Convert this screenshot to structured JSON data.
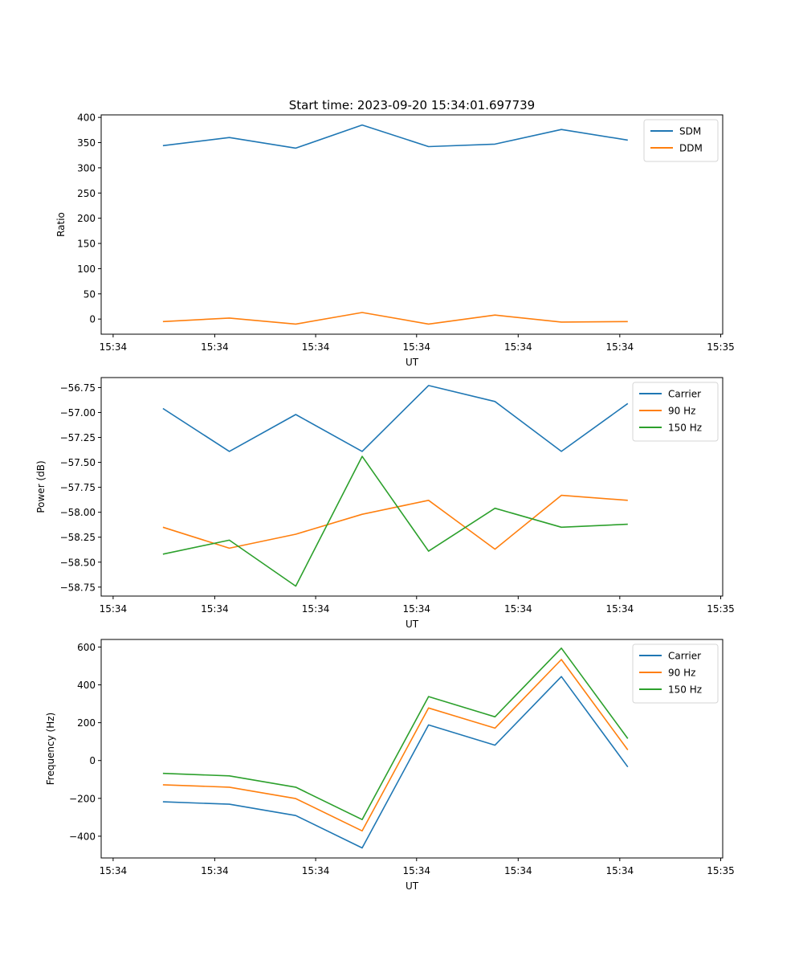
{
  "figure": {
    "title": "Start time: 2023-09-20 15:34:01.697739"
  },
  "colors": {
    "c0": "#1f77b4",
    "c1": "#ff7f0e",
    "c2": "#2ca02c"
  },
  "chart_data": [
    {
      "type": "line",
      "title": "Start time: 2023-09-20 15:34:01.697739",
      "xlabel": "UT",
      "ylabel": "Ratio",
      "x": [
        0,
        1,
        2,
        3,
        4,
        5,
        6,
        7
      ],
      "xlim": [
        -0.93,
        8.43
      ],
      "xticks": [
        -0.75,
        0.78,
        2.3,
        3.82,
        5.35,
        6.88,
        8.4
      ],
      "xtick_labels": [
        "15:34",
        "15:34",
        "15:34",
        "15:34",
        "15:34",
        "15:34",
        "15:35"
      ],
      "ylim": [
        -30,
        405
      ],
      "yticks": [
        0,
        50,
        100,
        150,
        200,
        250,
        300,
        350,
        400
      ],
      "ytick_labels": [
        "0",
        "50",
        "100",
        "150",
        "200",
        "250",
        "300",
        "350",
        "400"
      ],
      "grid": false,
      "legend": "upper-right",
      "series": [
        {
          "name": "SDM",
          "color": "#1f77b4",
          "values": [
            344,
            360,
            339,
            385,
            342,
            347,
            376,
            355
          ]
        },
        {
          "name": "DDM",
          "color": "#ff7f0e",
          "values": [
            -5,
            2,
            -10,
            13,
            -10,
            8,
            -6,
            -5
          ]
        }
      ]
    },
    {
      "type": "line",
      "title": "",
      "xlabel": "UT",
      "ylabel": "Power (dB)",
      "x": [
        0,
        1,
        2,
        3,
        4,
        5,
        6,
        7
      ],
      "xlim": [
        -0.93,
        8.43
      ],
      "xticks": [
        -0.75,
        0.78,
        2.3,
        3.82,
        5.35,
        6.88,
        8.4
      ],
      "xtick_labels": [
        "15:34",
        "15:34",
        "15:34",
        "15:34",
        "15:34",
        "15:34",
        "15:35"
      ],
      "ylim": [
        -58.84,
        -56.65
      ],
      "yticks": [
        -58.75,
        -58.5,
        -58.25,
        -58.0,
        -57.75,
        -57.5,
        -57.25,
        -57.0,
        -56.75
      ],
      "ytick_labels": [
        "−58.75",
        "−58.50",
        "−58.25",
        "−58.00",
        "−57.75",
        "−57.50",
        "−57.25",
        "−57.00",
        "−56.75"
      ],
      "grid": false,
      "legend": "upper-right",
      "series": [
        {
          "name": "Carrier",
          "color": "#1f77b4",
          "values": [
            -56.96,
            -57.39,
            -57.02,
            -57.39,
            -56.73,
            -56.89,
            -57.39,
            -56.91
          ]
        },
        {
          "name": "90 Hz",
          "color": "#ff7f0e",
          "values": [
            -58.15,
            -58.36,
            -58.22,
            -58.02,
            -57.88,
            -58.37,
            -57.83,
            -57.88
          ]
        },
        {
          "name": "150 Hz",
          "color": "#2ca02c",
          "values": [
            -58.42,
            -58.28,
            -58.74,
            -57.44,
            -58.39,
            -57.96,
            -58.15,
            -58.12
          ]
        }
      ]
    },
    {
      "type": "line",
      "title": "",
      "xlabel": "UT",
      "ylabel": "Frequency (Hz)",
      "x": [
        0,
        1,
        2,
        3,
        4,
        5,
        6,
        7
      ],
      "xlim": [
        -0.93,
        8.43
      ],
      "xticks": [
        -0.75,
        0.78,
        2.3,
        3.82,
        5.35,
        6.88,
        8.4
      ],
      "xtick_labels": [
        "15:34",
        "15:34",
        "15:34",
        "15:34",
        "15:34",
        "15:34",
        "15:35"
      ],
      "ylim": [
        -515,
        640
      ],
      "yticks": [
        -400,
        -200,
        0,
        200,
        400,
        600
      ],
      "ytick_labels": [
        "−400",
        "−200",
        "0",
        "200",
        "400",
        "600"
      ],
      "grid": false,
      "legend": "upper-right",
      "series": [
        {
          "name": "Carrier",
          "color": "#1f77b4",
          "values": [
            -218,
            -231,
            -291,
            -462,
            188,
            81,
            444,
            -34
          ]
        },
        {
          "name": "90 Hz",
          "color": "#ff7f0e",
          "values": [
            -128,
            -141,
            -201,
            -372,
            278,
            171,
            534,
            56
          ]
        },
        {
          "name": "150 Hz",
          "color": "#2ca02c",
          "values": [
            -68,
            -81,
            -141,
            -312,
            338,
            231,
            594,
            116
          ]
        }
      ]
    }
  ]
}
